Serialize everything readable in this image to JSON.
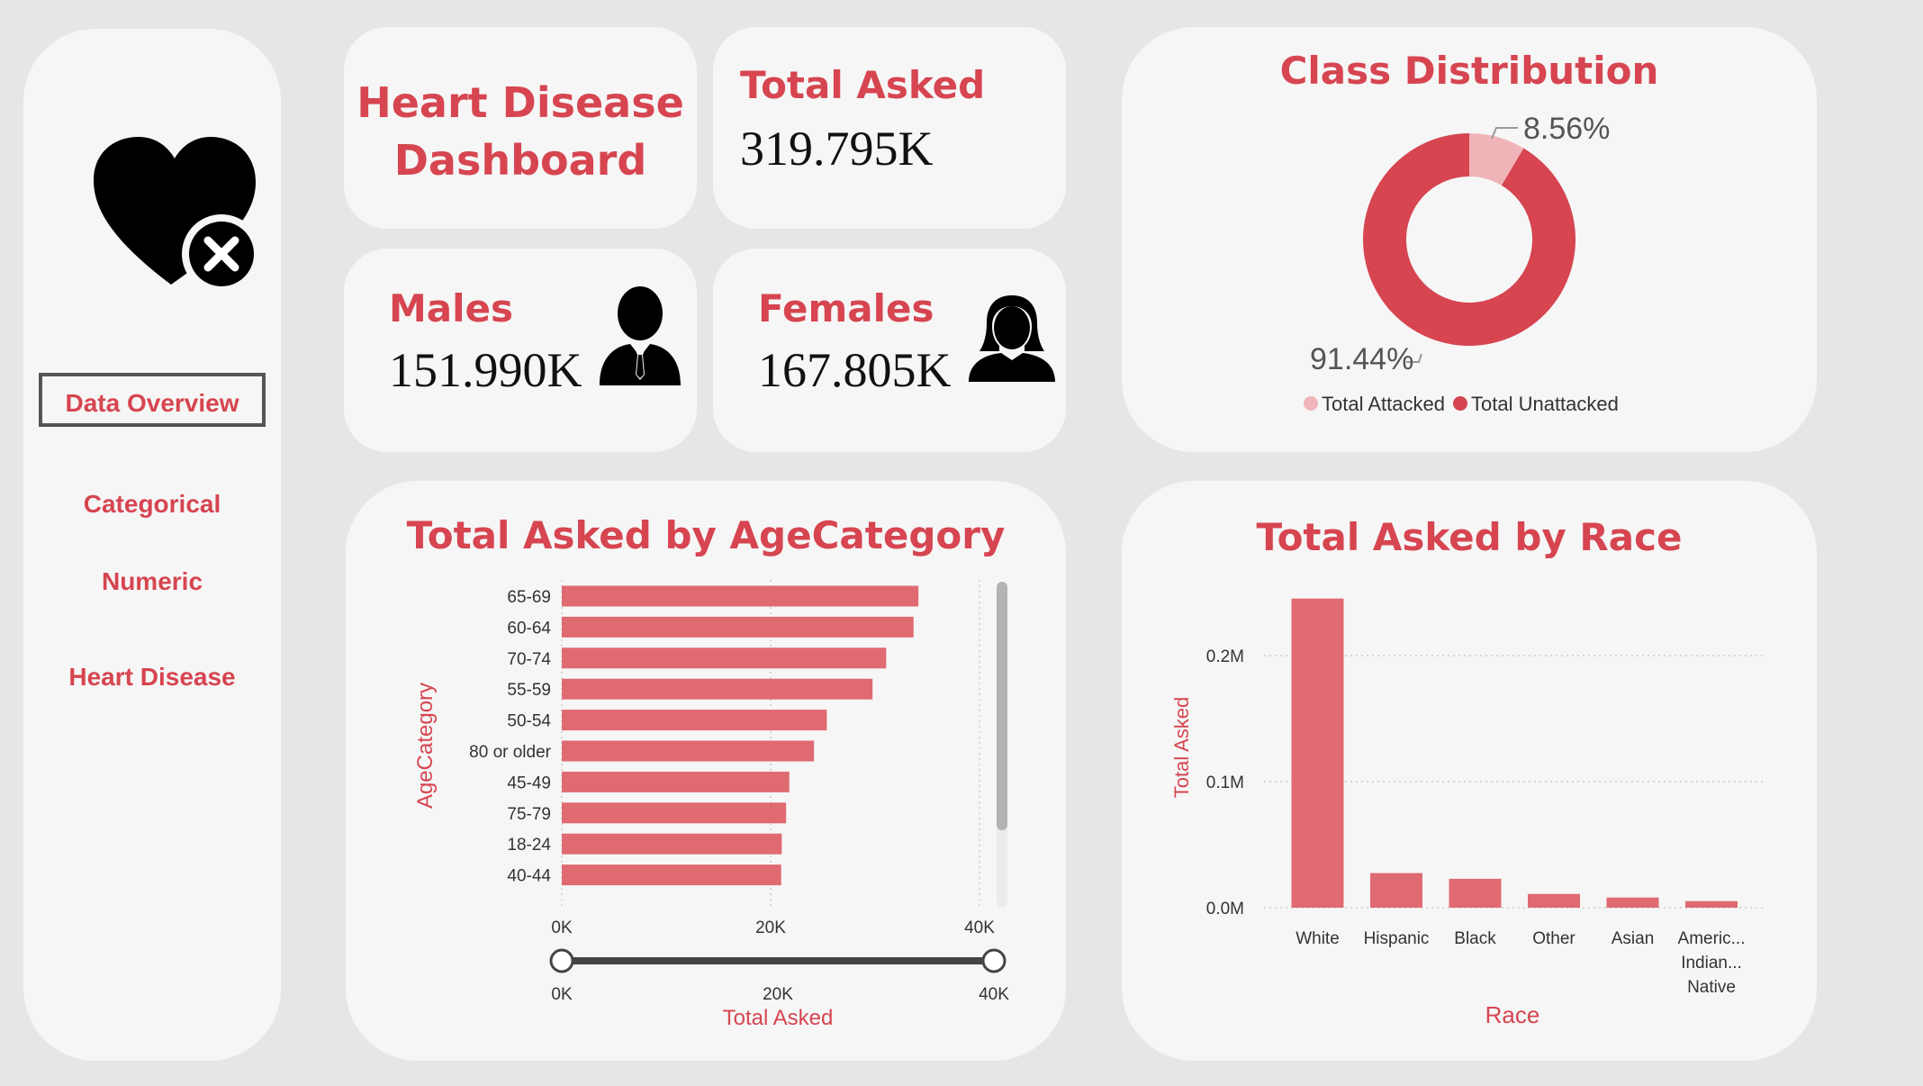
{
  "sidebar": {
    "nav": [
      "Data Overview",
      "Categorical",
      "Numeric",
      "Heart Disease"
    ]
  },
  "header": {
    "title_line1": "Heart Disease",
    "title_line2": "Dashboard"
  },
  "kpis": {
    "total_label": "Total Asked",
    "total_value": "319.795K",
    "males_label": "Males",
    "males_value": "151.990K",
    "females_label": "Females",
    "females_value": "167.805K"
  },
  "colors": {
    "accent": "#d64550",
    "bar": "#e06a72",
    "light": "#f0b4b8"
  },
  "chart_data": [
    {
      "type": "pie",
      "title": "Class Distribution",
      "labels": [
        "Total Attacked",
        "Total Unattacked"
      ],
      "values": [
        8.56,
        91.44
      ],
      "data_labels": [
        "8.56%",
        "91.44%"
      ],
      "legend_position": "bottom"
    },
    {
      "type": "bar",
      "orientation": "horizontal",
      "title": "Total Asked by AgeCategory",
      "xlabel": "Total Asked",
      "ylabel": "AgeCategory",
      "categories": [
        "65-69",
        "60-64",
        "70-74",
        "55-59",
        "50-54",
        "80 or older",
        "45-49",
        "75-79",
        "18-24",
        "40-44"
      ],
      "values": [
        34151,
        33686,
        31065,
        29757,
        25382,
        24153,
        21791,
        21482,
        21064,
        21006
      ],
      "xlim": [
        0,
        40000
      ],
      "xticks": [
        "0K",
        "20K",
        "40K"
      ],
      "slider_ticks": [
        "0K",
        "20K",
        "40K"
      ]
    },
    {
      "type": "bar",
      "title": "Total Asked by Race",
      "xlabel": "Race",
      "ylabel": "Total Asked",
      "categories": [
        "White",
        "Hispanic",
        "Black",
        "Other",
        "Asian",
        "Americ... Indian... Native"
      ],
      "category_lines": [
        [
          "White"
        ],
        [
          "Hispanic"
        ],
        [
          "Black"
        ],
        [
          "Other"
        ],
        [
          "Asian"
        ],
        [
          "Americ...",
          "Indian...",
          "Native"
        ]
      ],
      "values": [
        245212,
        27446,
        22939,
        10928,
        8068,
        5202
      ],
      "ylim": [
        0,
        250000
      ],
      "yticks": [
        {
          "value": 0,
          "label": "0.0M"
        },
        {
          "value": 100000,
          "label": "0.1M"
        },
        {
          "value": 200000,
          "label": "0.2M"
        }
      ]
    }
  ]
}
